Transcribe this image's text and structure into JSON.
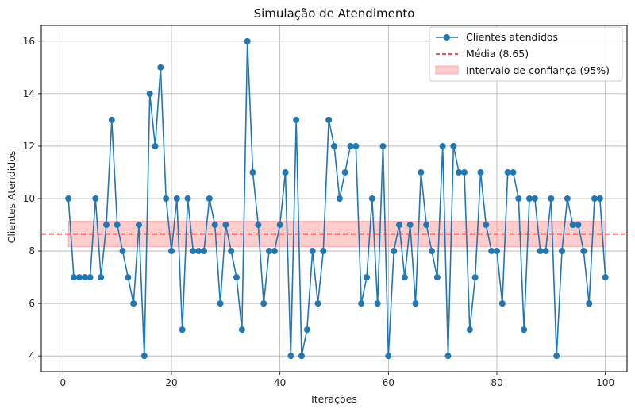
{
  "chart_data": {
    "type": "line",
    "title": "Simulação de Atendimento",
    "xlabel": "Iterações",
    "ylabel": "Clientes Atendidos",
    "xlim": [
      -4,
      104
    ],
    "ylim": [
      3.4,
      16.6
    ],
    "xticks": [
      0,
      20,
      40,
      60,
      80,
      100
    ],
    "yticks": [
      4,
      6,
      8,
      10,
      12,
      14,
      16
    ],
    "grid": true,
    "legend_position": "top-right",
    "x": [
      1,
      2,
      3,
      4,
      5,
      6,
      7,
      8,
      9,
      10,
      11,
      12,
      13,
      14,
      15,
      16,
      17,
      18,
      19,
      20,
      21,
      22,
      23,
      24,
      25,
      26,
      27,
      28,
      29,
      30,
      31,
      32,
      33,
      34,
      35,
      36,
      37,
      38,
      39,
      40,
      41,
      42,
      43,
      44,
      45,
      46,
      47,
      48,
      49,
      50,
      51,
      52,
      53,
      54,
      55,
      56,
      57,
      58,
      59,
      60,
      61,
      62,
      63,
      64,
      65,
      66,
      67,
      68,
      69,
      70,
      71,
      72,
      73,
      74,
      75,
      76,
      77,
      78,
      79,
      80,
      81,
      82,
      83,
      84,
      85,
      86,
      87,
      88,
      89,
      90,
      91,
      92,
      93,
      94,
      95,
      96,
      97,
      98,
      99,
      100
    ],
    "series": [
      {
        "name": "Clientes atendidos",
        "color": "#1f77b4",
        "values": [
          10,
          7,
          7,
          7,
          7,
          10,
          7,
          9,
          13,
          9,
          8,
          7,
          6,
          9,
          4,
          14,
          12,
          15,
          10,
          8,
          10,
          5,
          10,
          8,
          8,
          8,
          10,
          9,
          6,
          9,
          8,
          7,
          5,
          16,
          11,
          9,
          6,
          8,
          8,
          9,
          11,
          4,
          13,
          4,
          5,
          8,
          6,
          8,
          13,
          12,
          10,
          11,
          12,
          12,
          6,
          7,
          10,
          6,
          12,
          4,
          8,
          9,
          7,
          9,
          6,
          11,
          9,
          8,
          7,
          12,
          4,
          12,
          11,
          11,
          5,
          7,
          11,
          9,
          8,
          8,
          6,
          11,
          11,
          10,
          5,
          10,
          10,
          8,
          8,
          10,
          4,
          8,
          10,
          9,
          9,
          8,
          6,
          10,
          10,
          7
        ]
      }
    ],
    "mean": {
      "label": "Média (8.65)",
      "value": 8.65,
      "color": "#e31a1c"
    },
    "confidence_interval": {
      "label": "Intervalo de confiança (95%)",
      "lower": 8.16,
      "upper": 9.14,
      "x_range": [
        1,
        100
      ],
      "color": "#ff9999"
    }
  }
}
